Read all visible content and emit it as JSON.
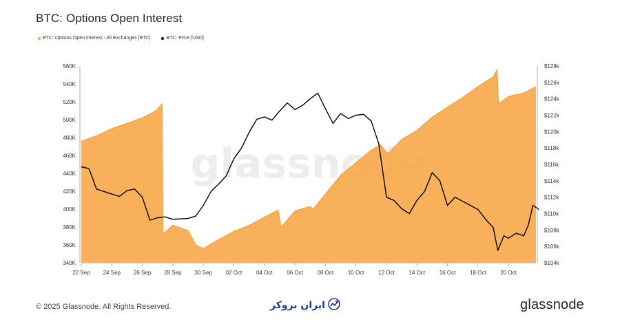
{
  "header": {
    "title": "BTC: Options Open Interest"
  },
  "legend": [
    {
      "label": "BTC: Options Open Interest - All Exchanges [BTC]",
      "color": "#f7a543"
    },
    {
      "label": "BTC: Price [USD]",
      "color": "#000000"
    }
  ],
  "watermark": "glassnode",
  "footer": {
    "copyright": "© 2025 Glassnode. All Rights Reserved.",
    "partner_logo_text": "ایران بروکر",
    "brand": "glassnode"
  },
  "chart_data": {
    "type": "area+line",
    "x_tick_labels": [
      "22 Sep",
      "24 Sep",
      "26 Sep",
      "28 Sep",
      "30 Sep",
      "02 Oct",
      "04 Oct",
      "06 Oct",
      "08 Oct",
      "10 Oct",
      "12 Oct",
      "14 Oct",
      "16 Oct",
      "18 Oct",
      "20 Oct"
    ],
    "x_range_days": [
      0,
      29.8
    ],
    "left_axis": {
      "ylim": [
        340000,
        560000
      ],
      "tick_labels": [
        "340K",
        "360K",
        "380K",
        "400K",
        "420K",
        "440K",
        "460K",
        "480K",
        "500K",
        "520K",
        "540K",
        "560K"
      ]
    },
    "right_axis": {
      "ylim": [
        104000,
        128000
      ],
      "tick_labels": [
        "$104k",
        "$106k",
        "$108k",
        "$110k",
        "$112k",
        "$114k",
        "$116k",
        "$118k",
        "$120k",
        "$122k",
        "$124k",
        "$126k",
        "$128k"
      ]
    },
    "series": [
      {
        "name": "BTC: Options Open Interest - All Exchanges [BTC]",
        "axis": "left",
        "color": "#f7a543",
        "points": [
          [
            0,
            476000
          ],
          [
            1,
            482000
          ],
          [
            2,
            490000
          ],
          [
            3,
            496000
          ],
          [
            4,
            502000
          ],
          [
            4.9,
            510000
          ],
          [
            5.3,
            518000
          ],
          [
            5.35,
            372000
          ],
          [
            6,
            382000
          ],
          [
            7,
            376000
          ],
          [
            7.5,
            360000
          ],
          [
            8,
            356000
          ],
          [
            9,
            366000
          ],
          [
            10,
            375000
          ],
          [
            11,
            382000
          ],
          [
            12,
            391000
          ],
          [
            12.9,
            399000
          ],
          [
            13.1,
            380000
          ],
          [
            14,
            398000
          ],
          [
            15,
            403000
          ],
          [
            15.2,
            400000
          ],
          [
            16,
            417000
          ],
          [
            17,
            438000
          ],
          [
            18,
            452000
          ],
          [
            19,
            466000
          ],
          [
            19.6,
            472000
          ],
          [
            20.1,
            462000
          ],
          [
            21,
            478000
          ],
          [
            22,
            488000
          ],
          [
            23,
            503000
          ],
          [
            24,
            514000
          ],
          [
            25,
            525000
          ],
          [
            26,
            537000
          ],
          [
            27,
            548000
          ],
          [
            27.25,
            556000
          ],
          [
            27.35,
            518000
          ],
          [
            28,
            526000
          ],
          [
            29,
            530000
          ],
          [
            29.8,
            537000
          ]
        ]
      },
      {
        "name": "BTC: Price [USD]",
        "axis": "right",
        "color": "#000000",
        "points": [
          [
            0,
            115700
          ],
          [
            0.5,
            115500
          ],
          [
            1,
            113000
          ],
          [
            1.8,
            112500
          ],
          [
            2.5,
            112100
          ],
          [
            3,
            112800
          ],
          [
            3.5,
            113000
          ],
          [
            4,
            112000
          ],
          [
            4.5,
            109200
          ],
          [
            5,
            109500
          ],
          [
            5.5,
            109600
          ],
          [
            6,
            109300
          ],
          [
            7,
            109400
          ],
          [
            7.5,
            109700
          ],
          [
            8,
            111000
          ],
          [
            8.5,
            112700
          ],
          [
            9,
            113600
          ],
          [
            9.5,
            114600
          ],
          [
            10,
            116700
          ],
          [
            10.5,
            118000
          ],
          [
            11,
            119900
          ],
          [
            11.5,
            121500
          ],
          [
            12,
            121800
          ],
          [
            12.5,
            121400
          ],
          [
            13,
            122500
          ],
          [
            13.5,
            123500
          ],
          [
            14,
            122700
          ],
          [
            14.5,
            123200
          ],
          [
            15,
            124000
          ],
          [
            15.5,
            124700
          ],
          [
            16,
            122800
          ],
          [
            16.5,
            121000
          ],
          [
            17,
            122200
          ],
          [
            17.5,
            121600
          ],
          [
            18,
            122000
          ],
          [
            18.5,
            122100
          ],
          [
            19,
            121300
          ],
          [
            19.5,
            118500
          ],
          [
            20,
            112000
          ],
          [
            20.5,
            111600
          ],
          [
            21,
            110600
          ],
          [
            21.5,
            110000
          ],
          [
            22,
            111600
          ],
          [
            22.5,
            112700
          ],
          [
            23,
            115000
          ],
          [
            23.5,
            114000
          ],
          [
            24,
            111000
          ],
          [
            24.5,
            112000
          ],
          [
            25,
            111500
          ],
          [
            25.5,
            111000
          ],
          [
            26,
            110500
          ],
          [
            26.5,
            109300
          ],
          [
            27,
            108300
          ],
          [
            27.3,
            105500
          ],
          [
            27.7,
            107300
          ],
          [
            28,
            107000
          ],
          [
            28.5,
            107600
          ],
          [
            29,
            107300
          ],
          [
            29.3,
            108600
          ],
          [
            29.6,
            111000
          ],
          [
            30,
            110500
          ]
        ]
      }
    ],
    "grid": false,
    "legend_position": "top-left"
  }
}
